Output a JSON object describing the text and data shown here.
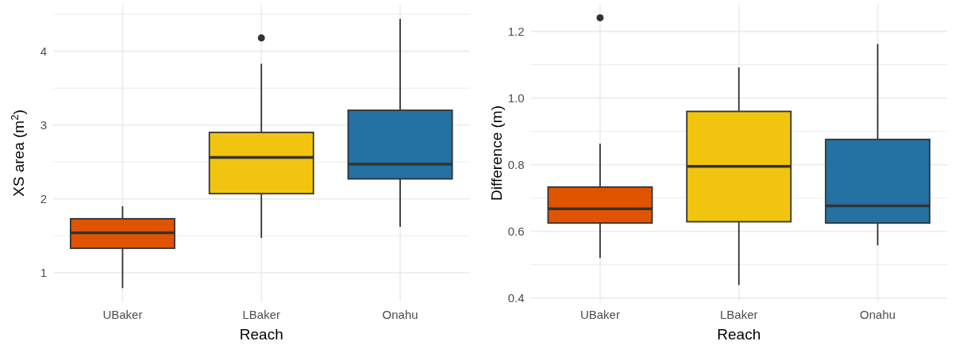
{
  "chart_data": [
    {
      "type": "box",
      "xlabel": "Reach",
      "ylabel": "XS area (m$^{2}$)",
      "categories": [
        "UBaker",
        "LBaker",
        "Onahu"
      ],
      "colors": [
        "#e05400",
        "#f1c40f",
        "#2471a3"
      ],
      "boxes": [
        {
          "low": 0.79,
          "q1": 1.33,
          "median": 1.54,
          "q3": 1.73,
          "high": 1.9
        },
        {
          "low": 1.47,
          "q1": 2.07,
          "median": 2.56,
          "q3": 2.9,
          "high": 3.83,
          "outliers": [
            4.18
          ]
        },
        {
          "low": 1.62,
          "q1": 2.27,
          "median": 2.47,
          "q3": 3.2,
          "high": 4.44
        }
      ],
      "ylim": [
        0.61,
        4.63
      ],
      "yticks": [
        1,
        {
          "value": 1.5,
          "label": null
        },
        2,
        {
          "value": 2.5,
          "label": null
        },
        3,
        {
          "value": 3.5,
          "label": null
        },
        4,
        {
          "value": 4.5,
          "label": null
        }
      ],
      "grid": true
    },
    {
      "type": "box",
      "xlabel": "Reach",
      "ylabel": "Difference (m)",
      "categories": [
        "UBaker",
        "LBaker",
        "Onahu"
      ],
      "colors": [
        "#e05400",
        "#f1c40f",
        "#2471a3"
      ],
      "boxes": [
        {
          "low": 0.52,
          "q1": 0.625,
          "median": 0.668,
          "q3": 0.733,
          "high": 0.863,
          "outliers": [
            1.241
          ]
        },
        {
          "low": 0.439,
          "q1": 0.629,
          "median": 0.795,
          "q3": 0.96,
          "high": 1.092
        },
        {
          "low": 0.558,
          "q1": 0.625,
          "median": 0.677,
          "q3": 0.876,
          "high": 1.162
        }
      ],
      "ylim": [
        0.39,
        1.28
      ],
      "yticks": [
        {
          "value": 0.4,
          "label": "0.4"
        },
        {
          "value": 0.5,
          "label": null
        },
        {
          "value": 0.6,
          "label": "0.6"
        },
        {
          "value": 0.7,
          "label": null
        },
        {
          "value": 0.8,
          "label": "0.8"
        },
        {
          "value": 0.9,
          "label": null
        },
        {
          "value": 1.0,
          "label": "1.0"
        },
        {
          "value": 1.1,
          "label": null
        },
        {
          "value": 1.2,
          "label": "1.2"
        }
      ],
      "grid": true
    }
  ]
}
